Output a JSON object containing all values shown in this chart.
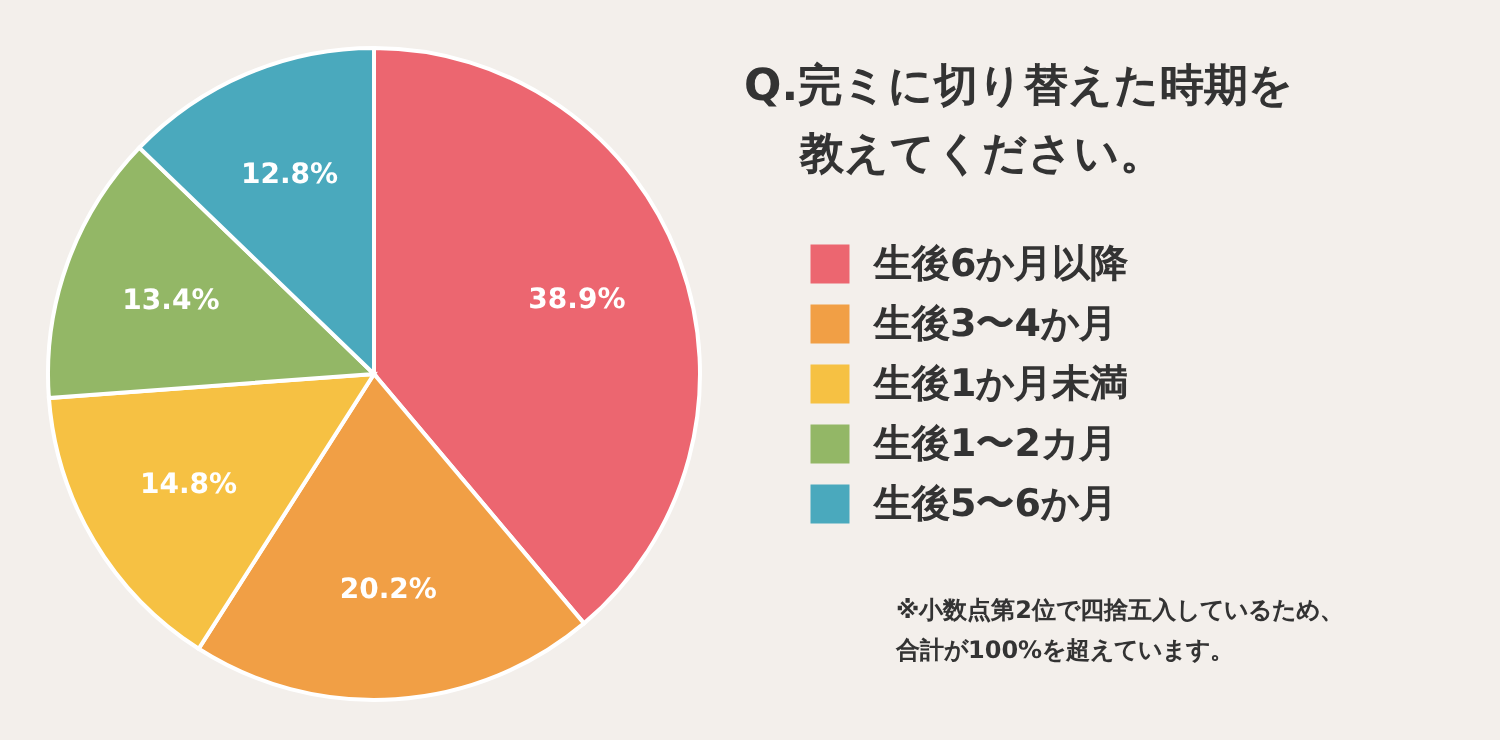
{
  "chart_data": {
    "type": "pie",
    "title": "Q.完ミに切り替えた時期を教えてください。",
    "categories": [
      "生後6か月以降",
      "生後3〜4か月",
      "生後1か月未満",
      "生後1〜2カ月",
      "生後5〜6か月"
    ],
    "values": [
      38.9,
      20.2,
      14.8,
      13.4,
      12.8
    ],
    "colors": [
      "#ec6670",
      "#f19f45",
      "#f6c143",
      "#93b766",
      "#4aa9bd"
    ],
    "value_labels": [
      "38.9%",
      "20.2%",
      "14.8%",
      "13.4%",
      "12.8%"
    ],
    "legend": "right",
    "annotations": [
      "※小数点第2位で四捨五入しているため、合計が100%を超えています。"
    ]
  }
}
